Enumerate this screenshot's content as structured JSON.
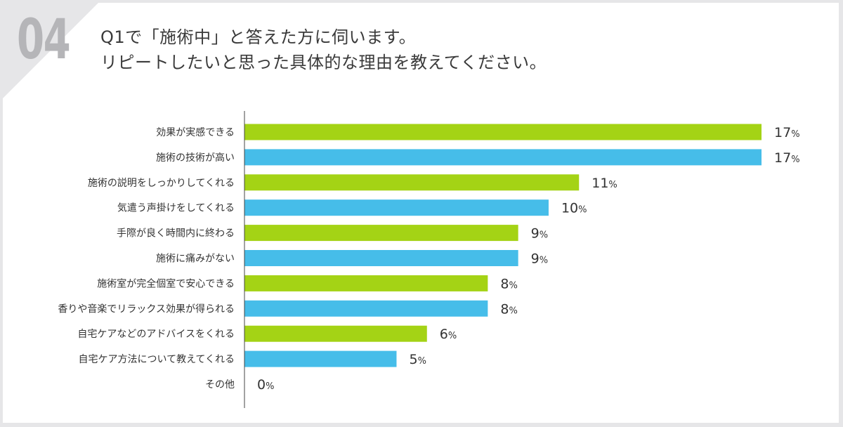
{
  "question": {
    "number": "04",
    "title_line1": "Q1で「施術中」と答えた方に伺います。",
    "title_line2": "リピートしたいと思った具体的な理由を教えてください。"
  },
  "colors": {
    "green": "#a4d315",
    "blue": "#46bde9",
    "axis": "#444444",
    "number_gray": "#b5b5b8"
  },
  "chart_data": {
    "type": "bar",
    "orientation": "horizontal",
    "title": "リピートしたいと思った具体的な理由",
    "unit": "%",
    "xlim": [
      0,
      17
    ],
    "categories": [
      "効果が実感できる",
      "施術の技術が高い",
      "施術の説明をしっかりしてくれる",
      "気遣う声掛けをしてくれる",
      "手際が良く時間内に終わる",
      "施術に痛みがない",
      "施術室が完全個室で安心できる",
      "香りや音楽でリラックス効果が得られる",
      "自宅ケアなどのアドバイスをくれる",
      "自宅ケア方法について教えてくれる",
      "その他"
    ],
    "values": [
      17,
      17,
      11,
      10,
      9,
      9,
      8,
      8,
      6,
      5,
      0
    ],
    "bar_colors": [
      "green",
      "blue",
      "green",
      "blue",
      "green",
      "blue",
      "green",
      "blue",
      "green",
      "blue",
      "green"
    ]
  }
}
